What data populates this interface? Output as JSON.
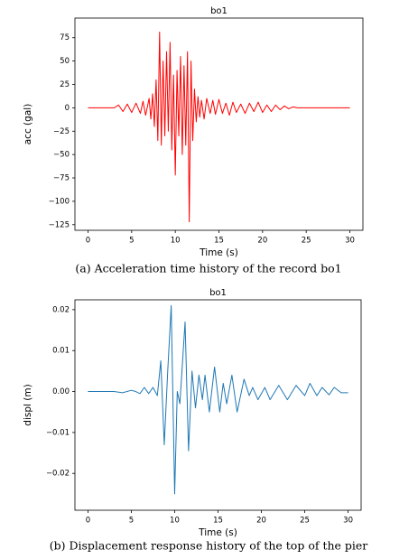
{
  "chart_data": [
    {
      "type": "line",
      "title": "bo1",
      "xlabel": "Time (s)",
      "ylabel": "acc (gal)",
      "caption": "(a) Acceleration time history of the record bo1",
      "x": [
        0,
        3,
        3.5,
        4,
        4.5,
        5,
        5.5,
        6,
        6.3,
        6.6,
        7,
        7.2,
        7.4,
        7.6,
        7.8,
        8,
        8.2,
        8.4,
        8.6,
        8.8,
        9,
        9.2,
        9.4,
        9.6,
        9.8,
        10,
        10.2,
        10.4,
        10.6,
        10.8,
        11,
        11.2,
        11.4,
        11.6,
        11.8,
        12,
        12.2,
        12.4,
        12.6,
        12.8,
        13,
        13.3,
        13.6,
        14,
        14.3,
        14.6,
        15,
        15.4,
        15.8,
        16.2,
        16.6,
        17,
        17.5,
        18,
        18.5,
        19,
        19.5,
        20,
        20.5,
        21,
        21.5,
        22,
        22.5,
        23,
        23.5,
        24,
        30
      ],
      "values": [
        0,
        0,
        3,
        -4,
        4,
        -5,
        5,
        -6,
        7,
        -8,
        10,
        -12,
        15,
        -20,
        30,
        -35,
        81,
        -40,
        50,
        -30,
        60,
        -25,
        70,
        -45,
        35,
        -72,
        40,
        -30,
        55,
        -50,
        45,
        -40,
        60,
        -122,
        50,
        -35,
        20,
        -15,
        12,
        -10,
        8,
        -12,
        10,
        -6,
        8,
        -7,
        9,
        -6,
        5,
        -8,
        6,
        -5,
        4,
        -6,
        5,
        -4,
        6,
        -5,
        3,
        -4,
        3,
        -2,
        2,
        -1,
        1,
        0,
        0
      ],
      "color": "#ff0000",
      "xlim": [
        -1.5,
        31.5
      ],
      "ylim": [
        -131,
        96
      ],
      "xticks": [
        0,
        5,
        10,
        15,
        20,
        25,
        30
      ],
      "yticks": [
        75,
        50,
        25,
        0,
        {
          "value": -25,
          "label": "−25"
        },
        {
          "value": -50,
          "label": "−50"
        },
        {
          "value": -75,
          "label": "−75"
        },
        {
          "value": -100,
          "label": "−100"
        },
        {
          "value": -125,
          "label": "−125"
        }
      ]
    },
    {
      "type": "line",
      "title": "bo1",
      "xlabel": "Time (s)",
      "ylabel": "displ (m)",
      "caption": "(b) Displacement response history of the top of the pier",
      "x": [
        0,
        3,
        4,
        5,
        5.5,
        6,
        6.5,
        7,
        7.5,
        8,
        8.4,
        8.8,
        9.2,
        9.6,
        10,
        10.3,
        10.6,
        11.2,
        11.6,
        12,
        12.4,
        12.8,
        13.2,
        13.5,
        14,
        14.6,
        15.2,
        15.6,
        16,
        16.6,
        17.2,
        18,
        18.6,
        19,
        19.6,
        20.4,
        21,
        22,
        23,
        24,
        25,
        25.6,
        26.4,
        27,
        27.8,
        28.4,
        29.2,
        30
      ],
      "values": [
        0,
        0,
        -0.0003,
        0.0003,
        0,
        -0.0005,
        0.001,
        -0.0005,
        0.001,
        -0.001,
        0.0075,
        -0.013,
        0.005,
        0.021,
        -0.025,
        0,
        -0.003,
        0.017,
        -0.0145,
        0.005,
        -0.004,
        0.004,
        -0.002,
        0.004,
        -0.005,
        0.006,
        -0.005,
        0.002,
        -0.003,
        0.004,
        -0.005,
        0.003,
        -0.001,
        0.001,
        -0.002,
        0.001,
        -0.002,
        0.0015,
        -0.002,
        0.0015,
        -0.001,
        0.002,
        -0.001,
        0.001,
        -0.0008,
        0.001,
        -0.0003,
        -0.0003
      ],
      "color": "#1f77b4",
      "xlim": [
        -1.5,
        31.5
      ],
      "ylim": [
        -0.029,
        0.0224
      ],
      "xticks": [
        0,
        5,
        10,
        15,
        20,
        25,
        30
      ],
      "yticks": [
        0.02,
        0.01,
        {
          "value": 0,
          "label": "0.00"
        },
        {
          "value": -0.01,
          "label": "−0.01"
        },
        {
          "value": -0.02,
          "label": "−0.02"
        }
      ]
    }
  ]
}
